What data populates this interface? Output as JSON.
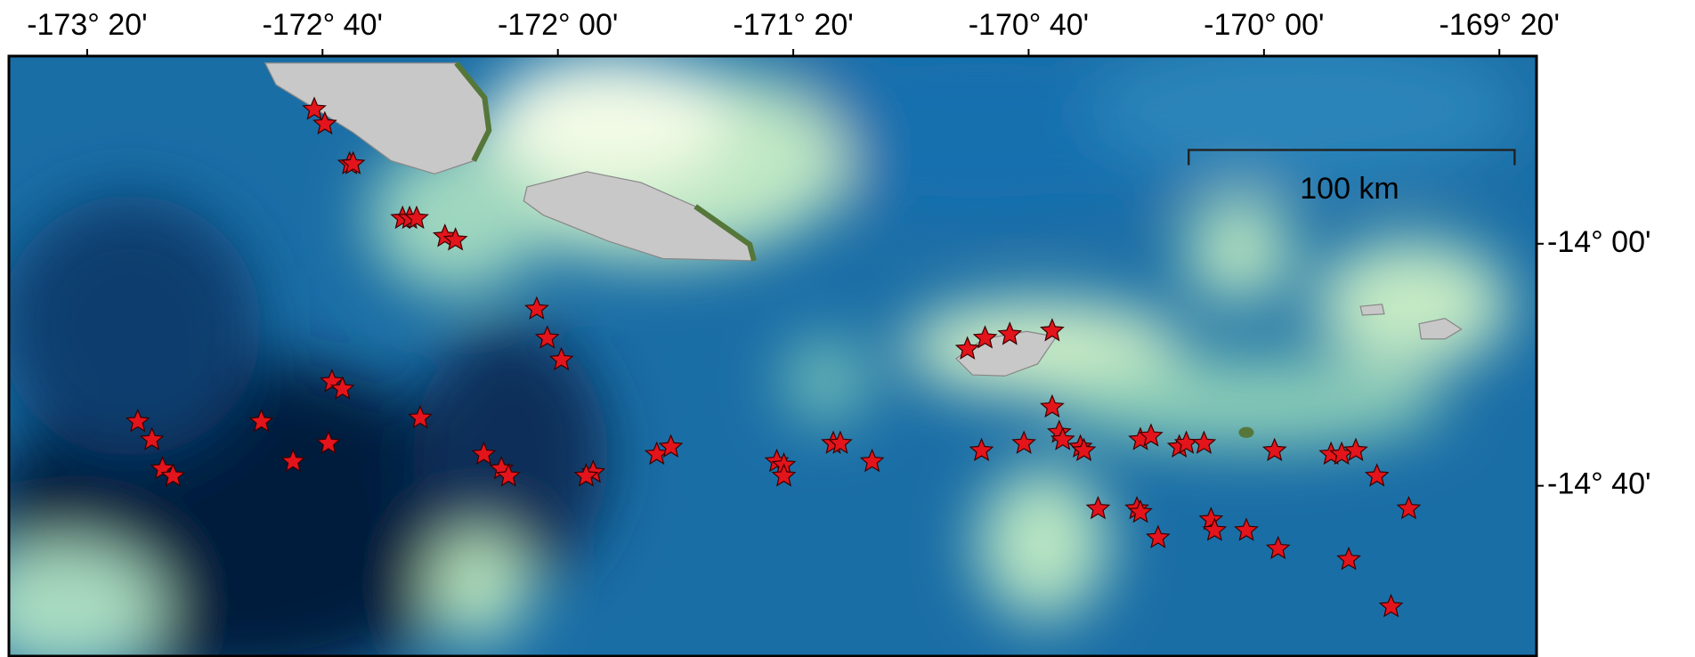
{
  "map": {
    "xlim": [
      -173.555,
      -169.228
    ],
    "ylim": [
      -15.136,
      -13.483
    ],
    "xticks": [
      {
        "value": -173.3333,
        "label": "-173° 20'"
      },
      {
        "value": -172.6667,
        "label": "-172° 40'"
      },
      {
        "value": -172.0,
        "label": "-172° 00'"
      },
      {
        "value": -171.3333,
        "label": "-171° 20'"
      },
      {
        "value": -170.6667,
        "label": "-170° 40'"
      },
      {
        "value": -170.0,
        "label": "-170° 00'"
      },
      {
        "value": -169.3333,
        "label": "-169° 20'"
      }
    ],
    "yticks": [
      {
        "value": -14.0,
        "label": "-14° 00'"
      },
      {
        "value": -14.6667,
        "label": "-14° 40'"
      }
    ],
    "scale_bar": "100 km",
    "marker_color": "#e3141b",
    "points": {
      "lon": [
        -172.69,
        -172.66,
        -172.59,
        -172.58,
        -172.44,
        -172.42,
        -172.4,
        -172.32,
        -172.29,
        -172.06,
        -172.03,
        -171.99,
        -172.64,
        -172.61,
        -173.19,
        -173.15,
        -172.84,
        -172.39,
        -172.65,
        -172.75,
        -173.12,
        -173.09,
        -172.21,
        -172.16,
        -172.14,
        -171.9,
        -171.92,
        -171.72,
        -171.68,
        -171.38,
        -171.36,
        -171.36,
        -171.22,
        -171.2,
        -171.11,
        -170.8,
        -170.68,
        -170.6,
        -170.58,
        -170.57,
        -170.52,
        -170.51,
        -170.84,
        -170.79,
        -170.72,
        -170.6,
        -170.35,
        -170.32,
        -170.24,
        -170.22,
        -170.17,
        -169.97,
        -169.81,
        -169.78,
        -169.74,
        -169.68,
        -169.59,
        -170.47,
        -170.36,
        -170.35,
        -170.3,
        -170.15,
        -170.14,
        -170.05,
        -169.96,
        -169.76,
        -169.64
      ],
      "lat": [
        -13.63,
        -13.67,
        -13.78,
        -13.78,
        -13.93,
        -13.93,
        -13.93,
        -13.98,
        -13.99,
        -14.18,
        -14.26,
        -14.32,
        -14.38,
        -14.4,
        -14.49,
        -14.54,
        -14.49,
        -14.48,
        -14.55,
        -14.6,
        -14.62,
        -14.64,
        -14.58,
        -14.62,
        -14.64,
        -14.63,
        -14.64,
        -14.58,
        -14.56,
        -14.6,
        -14.61,
        -14.64,
        -14.55,
        -14.55,
        -14.6,
        -14.57,
        -14.55,
        -14.45,
        -14.52,
        -14.54,
        -14.56,
        -14.57,
        -14.29,
        -14.26,
        -14.25,
        -14.24,
        -14.54,
        -14.53,
        -14.56,
        -14.55,
        -14.55,
        -14.57,
        -14.58,
        -14.58,
        -14.57,
        -14.64,
        -14.73,
        -14.73,
        -14.73,
        -14.74,
        -14.81,
        -14.76,
        -14.79,
        -14.79,
        -14.84,
        -14.87,
        -15.0
      ]
    }
  }
}
